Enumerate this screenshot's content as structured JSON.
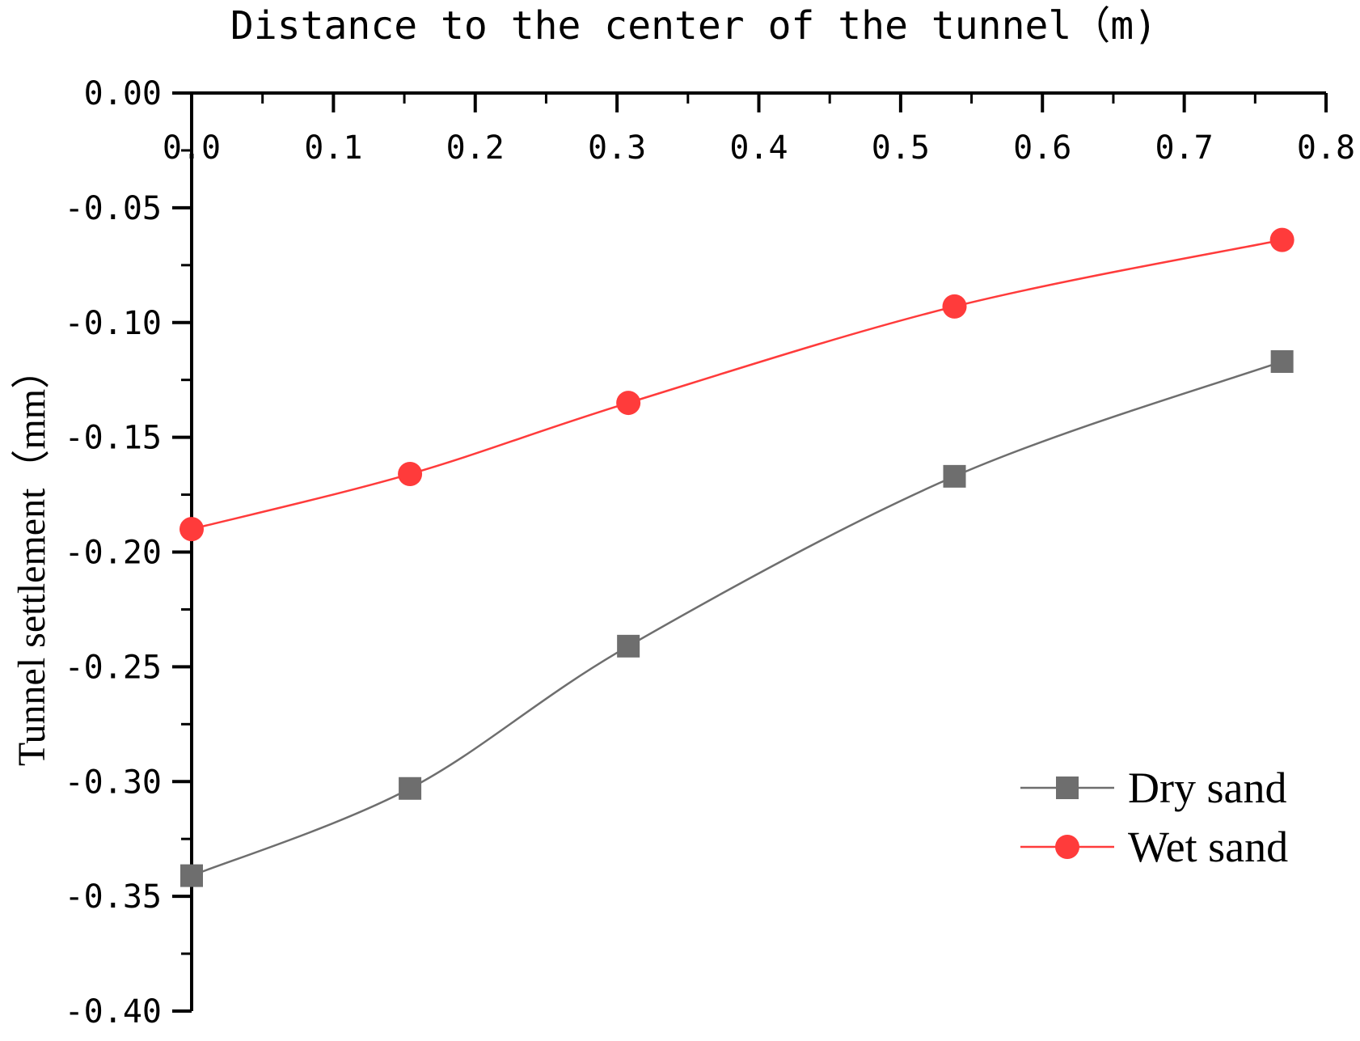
{
  "chart_data": {
    "type": "line",
    "xlabel": "Distance to the center of the tunnel（m)",
    "ylabel": "Tunnel settlement（mm）",
    "xlim": [
      0,
      0.8
    ],
    "ylim": [
      -0.4,
      0.0
    ],
    "x_axis_position": "top",
    "x_ticks": [
      "0.0",
      "0.1",
      "0.2",
      "0.3",
      "0.4",
      "0.5",
      "0.6",
      "0.7",
      "0.8"
    ],
    "y_ticks": [
      "0.00",
      "-0.05",
      "-0.10",
      "-0.15",
      "-0.20",
      "-0.25",
      "-0.30",
      "-0.35",
      "-0.40"
    ],
    "grid": false,
    "legend_position": "bottom-right",
    "series": [
      {
        "name": "Dry sand",
        "color": "#6e6e6e",
        "marker": "square",
        "x": [
          0.0,
          0.154,
          0.308,
          0.538,
          0.769
        ],
        "y": [
          -0.341,
          -0.303,
          -0.241,
          -0.167,
          -0.117
        ]
      },
      {
        "name": "Wet sand",
        "color": "#ff3b3b",
        "marker": "circle",
        "x": [
          0.0,
          0.154,
          0.308,
          0.538,
          0.769
        ],
        "y": [
          -0.19,
          -0.166,
          -0.135,
          -0.093,
          -0.064
        ]
      }
    ]
  }
}
